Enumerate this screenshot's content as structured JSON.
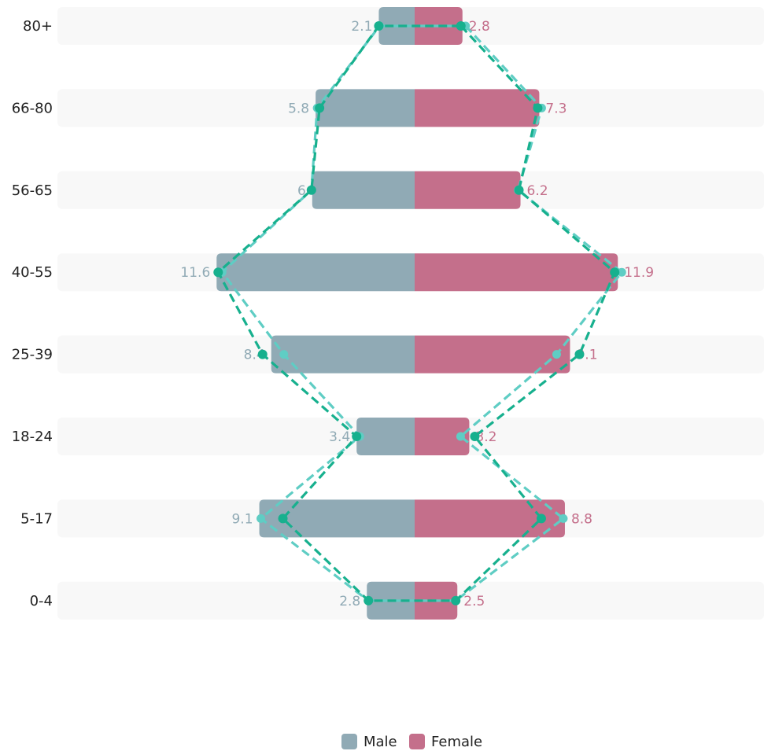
{
  "chart_data": {
    "type": "bar",
    "orientation": "horizontal-diverging",
    "categories": [
      "80+",
      "66-80",
      "56-65",
      "40-55",
      "25-39",
      "18-24",
      "5-17",
      "0-4"
    ],
    "series": [
      {
        "name": "Male",
        "values": [
          2.1,
          5.8,
          6,
          11.6,
          8.4,
          3.4,
          9.1,
          2.8
        ],
        "color": "#90aab5"
      },
      {
        "name": "Female",
        "values": [
          2.8,
          7.3,
          6.2,
          11.9,
          9.1,
          3.2,
          8.8,
          2.5
        ],
        "color": "#c46f8b"
      }
    ],
    "value_labels": {
      "Male": [
        "2.1",
        "5.8",
        "6",
        "11.6",
        "8.4",
        "3.4",
        "9.1",
        "2.8"
      ],
      "Female": [
        "2.8",
        "7.3",
        "6.2",
        "11.9",
        "9.1",
        "3.2",
        "8.8",
        "2.5"
      ]
    },
    "overlay_lines": [
      {
        "style": "dashed",
        "color": "#5fcdc4",
        "markers": "circle"
      },
      {
        "style": "dashed",
        "color": "#17b08e",
        "markers": "circle"
      }
    ],
    "row_band_color": "#f8f8f8",
    "grid": false,
    "legend": {
      "position": "bottom-center",
      "items": [
        "Male",
        "Female"
      ]
    },
    "title": "",
    "xlabel": "",
    "ylabel": ""
  }
}
